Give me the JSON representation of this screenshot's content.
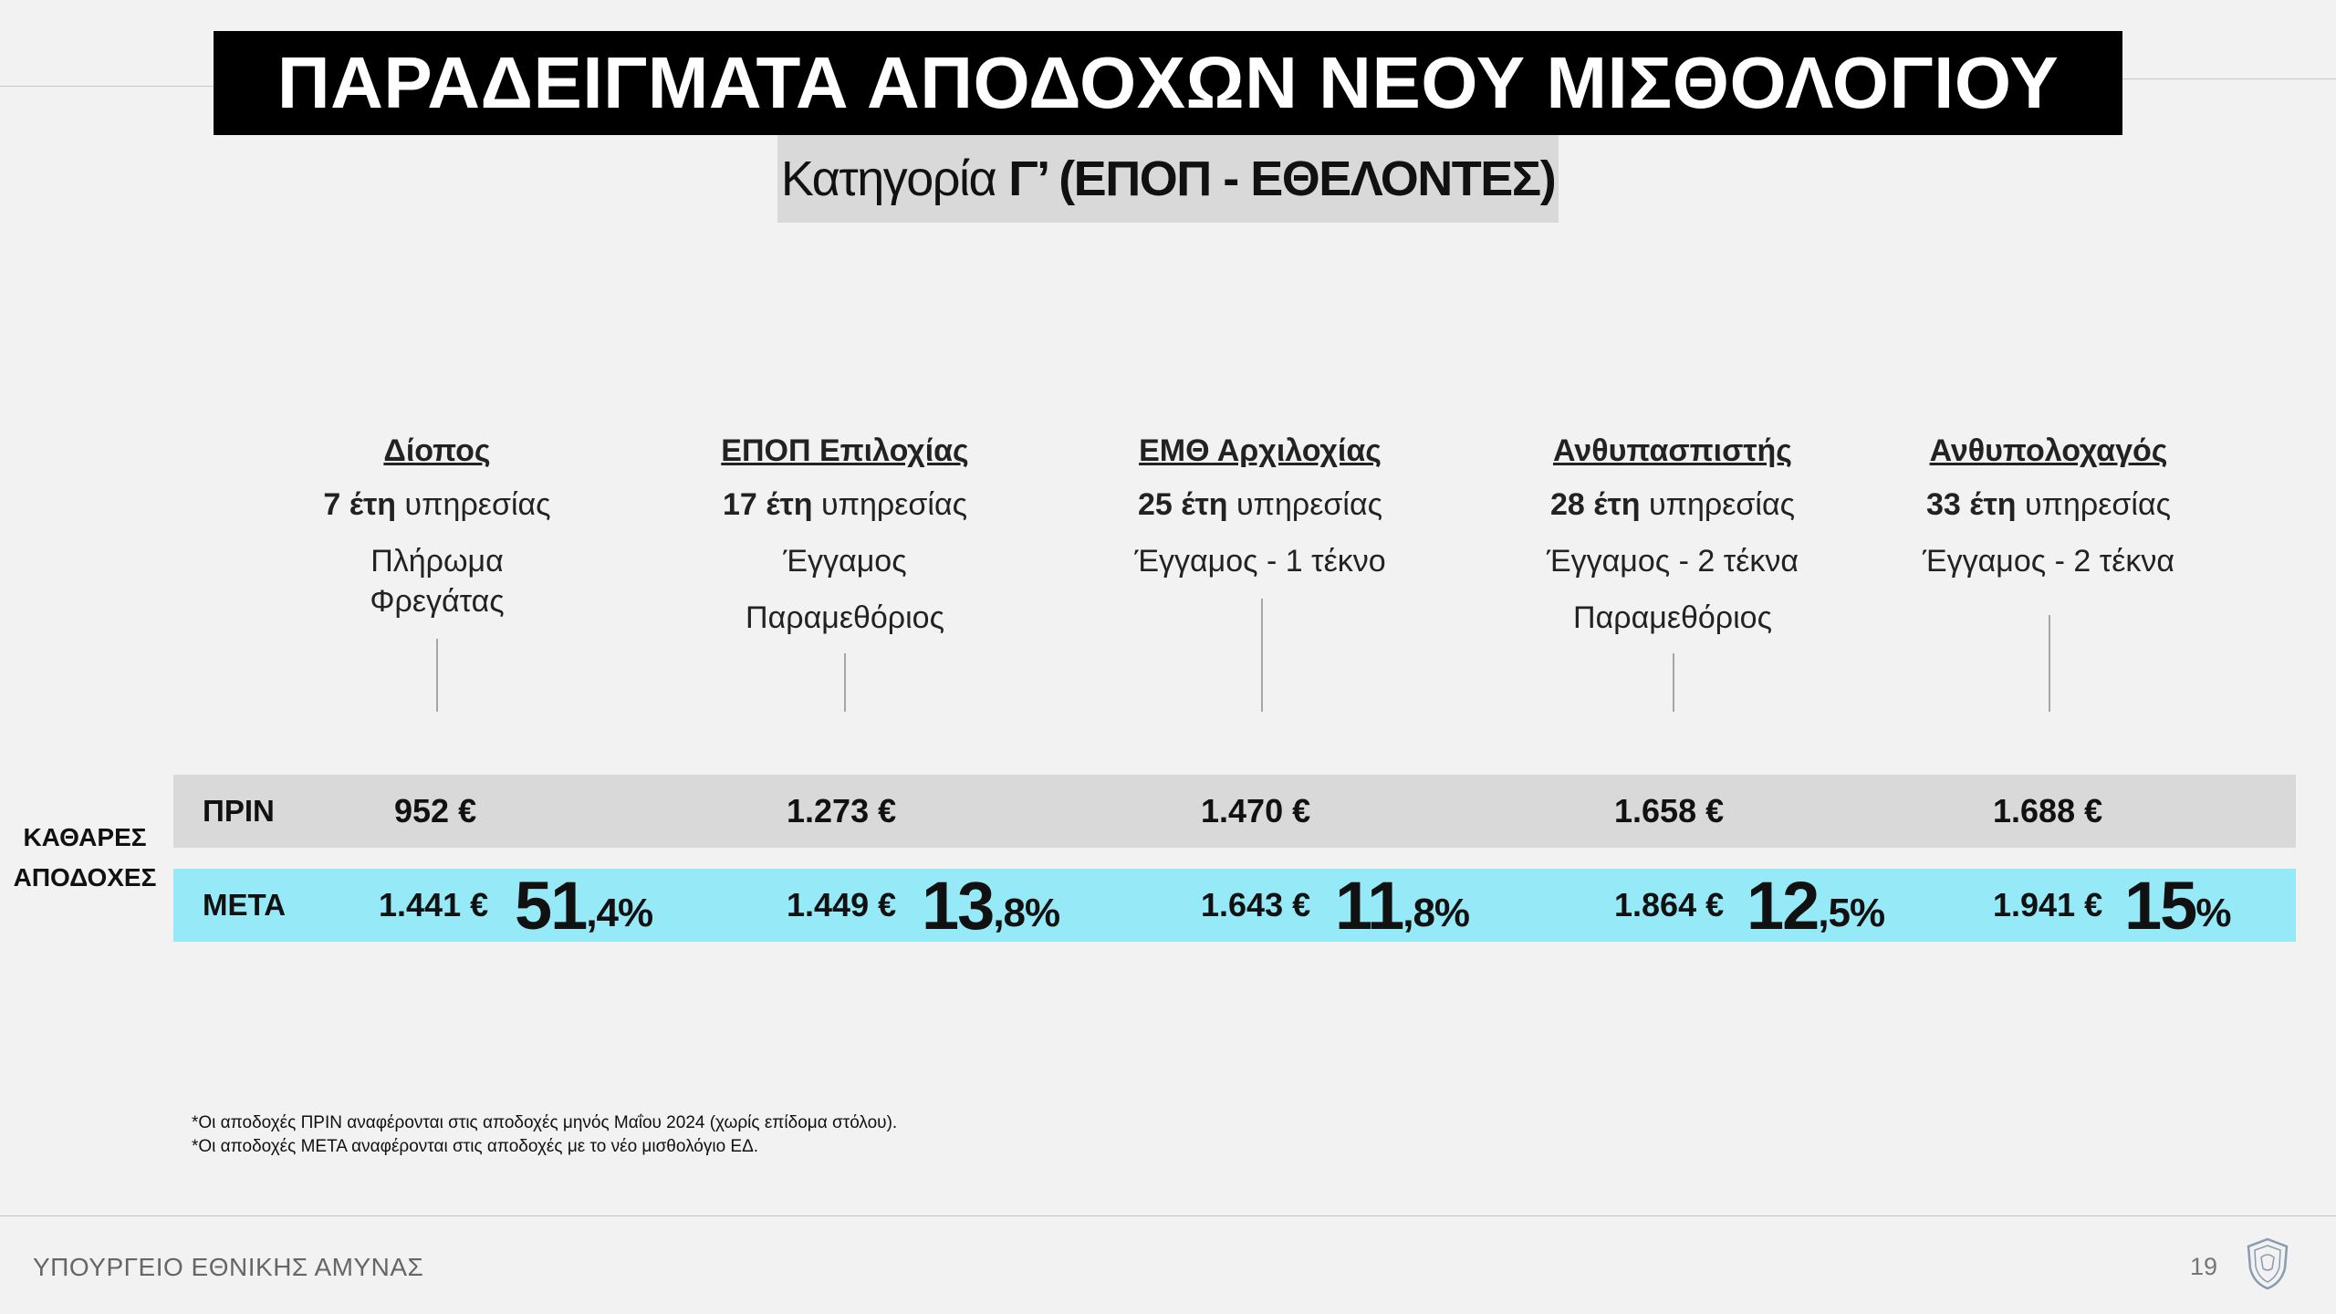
{
  "title": "ΠΑΡΑΔΕΙΓΜΑΤΑ ΑΠΟΔΟΧΩΝ ΝΕΟΥ ΜΙΣΘΟΛΟΓΙΟΥ",
  "subtitle": {
    "prefix": "Κατηγορία",
    "category": "Γ’ (ΕΠΟΠ - ΕΘΕΛΟΝΤΕΣ)"
  },
  "side_label": [
    "ΚΑΘΑΡΕΣ",
    "ΑΠΟΔΟΧΕΣ"
  ],
  "row_labels": {
    "before": "ΠΡΙΝ",
    "after": "ΜΕΤΑ"
  },
  "examples": [
    {
      "rank": "Δίοπος",
      "years_num": "7 έτη",
      "years_text": " υπηρεσίας",
      "details": [
        "Πλήρωμα",
        "Φρεγάτας"
      ],
      "before": "952 €",
      "after": "1.441 €",
      "pct_int": "51",
      "pct_dec": ",4%"
    },
    {
      "rank": "ΕΠΟΠ Επιλοχίας",
      "years_num": "17 έτη",
      "years_text": " υπηρεσίας",
      "details": [
        "Έγγαμος",
        "Παραμεθόριος"
      ],
      "before": "1.273 €",
      "after": "1.449 €",
      "pct_int": "13",
      "pct_dec": ",8%"
    },
    {
      "rank": "ΕΜΘ Αρχιλοχίας",
      "years_num": "25 έτη",
      "years_text": " υπηρεσίας",
      "details": [
        "Έγγαμος - 1 τέκνο"
      ],
      "before": "1.470 €",
      "after": "1.643 €",
      "pct_int": "11",
      "pct_dec": ",8%"
    },
    {
      "rank": "Ανθυπασπιστής",
      "years_num": "28 έτη",
      "years_text": " υπηρεσίας",
      "details": [
        "Έγγαμος - 2 τέκνα",
        "Παραμεθόριος"
      ],
      "before": "1.658 €",
      "after": "1.864 €",
      "pct_int": "12",
      "pct_dec": ",5%"
    },
    {
      "rank": "Ανθυπολοχαγός",
      "years_num": "33 έτη",
      "years_text": " υπηρεσίας",
      "details": [
        "Έγγαμος - 2 τέκνα"
      ],
      "before": "1.688 €",
      "after": "1.941 €",
      "pct_int": "15",
      "pct_dec": "%"
    }
  ],
  "notes": [
    "*Οι αποδοχές ΠΡΙΝ αναφέρονται στις αποδοχές μηνός Μαΐου 2024 (χωρίς επίδομα στόλου).",
    "*Οι αποδοχές ΜΕΤΑ αναφέρονται στις αποδοχές με το νέο μισθολόγιο ΕΔ."
  ],
  "footer": {
    "ministry": "ΥΠΟΥΡΓΕΙΟ ΕΘΝΙΚΗΣ ΑΜΥΝΑΣ",
    "page_number": "19",
    "emblem_icon": "ministry-shield-icon"
  },
  "colors": {
    "title_bg": "#000000",
    "subtitle_bg": "#d9d9d9",
    "before_band": "#d9d9d9",
    "after_band": "#96e9f7"
  }
}
